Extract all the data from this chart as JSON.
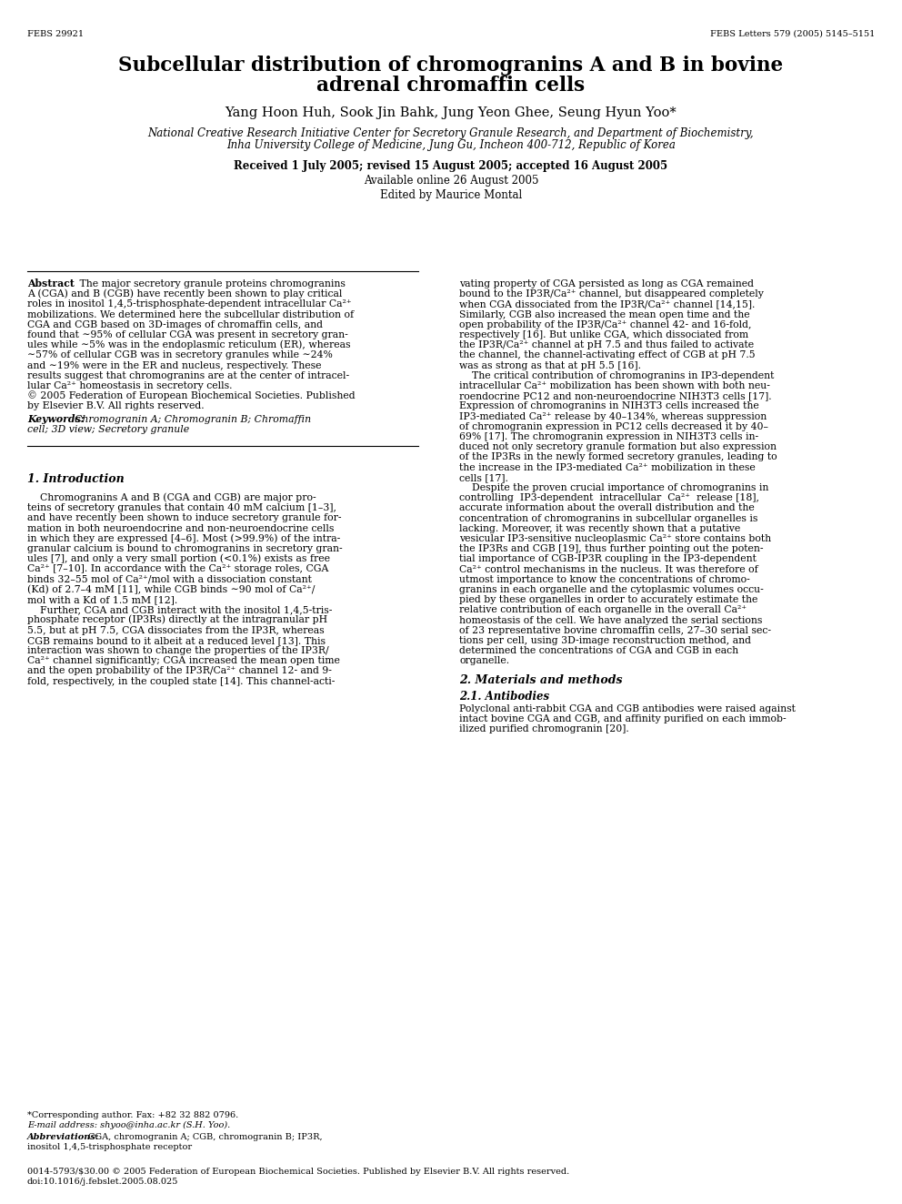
{
  "background_color": "#ffffff",
  "header_left": "FEBS 29921",
  "header_right": "FEBS Letters 579 (2005) 5145–5151",
  "title_line1": "Subcellular distribution of chromogranins A and B in bovine",
  "title_line2": "adrenal chromaffin cells",
  "authors": "Yang Hoon Huh, Sook Jin Bahk, Jung Yeon Ghee, Seung Hyun Yoo*",
  "affiliation1": "National Creative Research Initiative Center for Secretory Granule Research, and Department of Biochemistry,",
  "affiliation2": "Inha University College of Medicine, Jung Gu, Incheon 400-712, Republic of Korea",
  "received": "Received 1 July 2005; revised 15 August 2005; accepted 16 August 2005",
  "available": "Available online 26 August 2005",
  "edited": "Edited by Maurice Montal",
  "keywords_label": "Keywords:",
  "keywords_line1": "Chromogranin A; Chromogranin B; Chromaffin",
  "keywords_line2": "cell; 3D view; Secretory granule",
  "section1_title": "1. Introduction",
  "section2_title": "2. Materials and methods",
  "section2_sub1": "2.1. Antibodies",
  "footnote_star": "*Corresponding author. Fax: +82 32 882 0796.",
  "footnote_email": "E-mail address: shyoo@inha.ac.kr (S.H. Yoo).",
  "footnote_abbrev_label": "Abbreviations:",
  "footnote_abbrev_text": "CGA, chromogranin A; CGB, chromogranin B; IP3R,",
  "footnote_abbrev_text2": "inositol 1,4,5-trisphosphate receptor",
  "footer_left": "0014-5793/$30.00 © 2005 Federation of European Biochemical Societies. Published by Elsevier B.V. All rights reserved.",
  "footer_doi": "doi:10.1016/j.febslet.2005.08.025",
  "abstract_lines": [
    "Abstract   The major secretory granule proteins chromogranins",
    "A (CGA) and B (CGB) have recently been shown to play critical",
    "roles in inositol 1,4,5-trisphosphate-dependent intracellular Ca²⁺",
    "mobilizations. We determined here the subcellular distribution of",
    "CGA and CGB based on 3D-images of chromaffin cells, and",
    "found that ∼95% of cellular CGA was present in secretory gran-",
    "ules while ∼5% was in the endoplasmic reticulum (ER), whereas",
    "∼57% of cellular CGB was in secretory granules while ∼24%",
    "and ∼19% were in the ER and nucleus, respectively. These",
    "results suggest that chromogranins are at the center of intracel-",
    "lular Ca²⁺ homeostasis in secretory cells.",
    "© 2005 Federation of European Biochemical Societies. Published",
    "by Elsevier B.V. All rights reserved."
  ],
  "intro_lines": [
    "    Chromogranins A and B (CGA and CGB) are major pro-",
    "teins of secretory granules that contain 40 mM calcium [1–3],",
    "and have recently been shown to induce secretory granule for-",
    "mation in both neuroendocrine and non-neuroendocrine cells",
    "in which they are expressed [4–6]. Most (>99.9%) of the intra-",
    "granular calcium is bound to chromogranins in secretory gran-",
    "ules [7], and only a very small portion (<0.1%) exists as free",
    "Ca²⁺ [7–10]. In accordance with the Ca²⁺ storage roles, CGA",
    "binds 32–55 mol of Ca²⁺/mol with a dissociation constant",
    "(Kd) of 2.7–4 mM [11], while CGB binds ∼90 mol of Ca²⁺/",
    "mol with a Kd of 1.5 mM [12].",
    "    Further, CGA and CGB interact with the inositol 1,4,5-tris-",
    "phosphate receptor (IP3Rs) directly at the intragranular pH",
    "5.5, but at pH 7.5, CGA dissociates from the IP3R, whereas",
    "CGB remains bound to it albeit at a reduced level [13]. This",
    "interaction was shown to change the properties of the IP3R/",
    "Ca²⁺ channel significantly; CGA increased the mean open time",
    "and the open probability of the IP3R/Ca²⁺ channel 12- and 9-",
    "fold, respectively, in the coupled state [14]. This channel-acti-"
  ],
  "right_lines": [
    "vating property of CGA persisted as long as CGA remained",
    "bound to the IP3R/Ca²⁺ channel, but disappeared completely",
    "when CGA dissociated from the IP3R/Ca²⁺ channel [14,15].",
    "Similarly, CGB also increased the mean open time and the",
    "open probability of the IP3R/Ca²⁺ channel 42- and 16-fold,",
    "respectively [16]. But unlike CGA, which dissociated from",
    "the IP3R/Ca²⁺ channel at pH 7.5 and thus failed to activate",
    "the channel, the channel-activating effect of CGB at pH 7.5",
    "was as strong as that at pH 5.5 [16].",
    "    The critical contribution of chromogranins in IP3-dependent",
    "intracellular Ca²⁺ mobilization has been shown with both neu-",
    "roendocrine PC12 and non-neuroendocrine NIH3T3 cells [17].",
    "Expression of chromogranins in NIH3T3 cells increased the",
    "IP3-mediated Ca²⁺ release by 40–134%, whereas suppression",
    "of chromogranin expression in PC12 cells decreased it by 40–",
    "69% [17]. The chromogranin expression in NIH3T3 cells in-",
    "duced not only secretory granule formation but also expression",
    "of the IP3Rs in the newly formed secretory granules, leading to",
    "the increase in the IP3-mediated Ca²⁺ mobilization in these",
    "cells [17].",
    "    Despite the proven crucial importance of chromogranins in",
    "controlling  IP3-dependent  intracellular  Ca²⁺  release [18],",
    "accurate information about the overall distribution and the",
    "concentration of chromogranins in subcellular organelles is",
    "lacking. Moreover, it was recently shown that a putative",
    "vesicular IP3-sensitive nucleoplasmic Ca²⁺ store contains both",
    "the IP3Rs and CGB [19], thus further pointing out the poten-",
    "tial importance of CGB-IP3R coupling in the IP3-dependent",
    "Ca²⁺ control mechanisms in the nucleus. It was therefore of",
    "utmost importance to know the concentrations of chromo-",
    "granins in each organelle and the cytoplasmic volumes occu-",
    "pied by these organelles in order to accurately estimate the",
    "relative contribution of each organelle in the overall Ca²⁺",
    "homeostasis of the cell. We have analyzed the serial sections",
    "of 23 representative bovine chromaffin cells, 27–30 serial sec-",
    "tions per cell, using 3D-image reconstruction method, and",
    "determined the concentrations of CGA and CGB in each",
    "organelle."
  ],
  "s21_lines": [
    "Polyclonal anti-rabbit CGA and CGB antibodies were raised against",
    "intact bovine CGA and CGB, and affinity purified on each immob-",
    "ilized purified chromogranin [20]."
  ]
}
